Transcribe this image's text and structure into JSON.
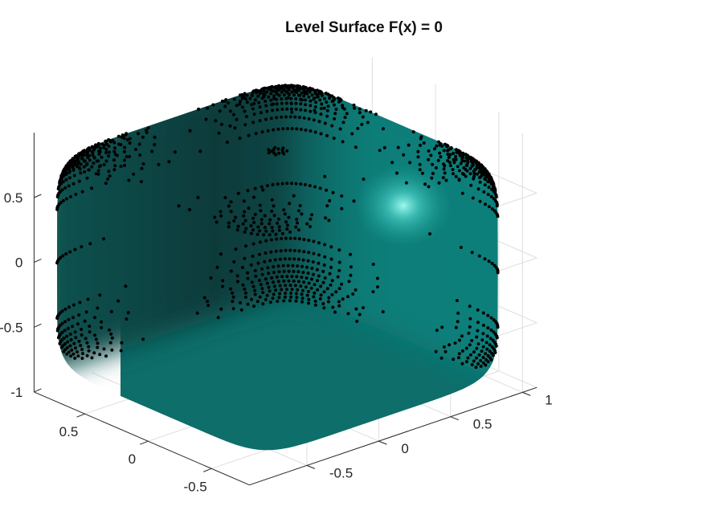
{
  "chart_data": {
    "type": "scatter",
    "subtype": "3d-isosurface-with-points",
    "title": "Level Surface F(x) = 0",
    "xlabel": "",
    "ylabel": "",
    "zlabel": "",
    "x_ticks": [
      "0.5",
      "0",
      "-0.5"
    ],
    "y_ticks": [
      "-0.5",
      "0",
      "0.5",
      "1"
    ],
    "z_ticks": [
      "0.5",
      "0",
      "-0.5",
      "-1"
    ],
    "xlim": [
      -0.8,
      0.9
    ],
    "ylim": [
      -0.9,
      1.1
    ],
    "zlim": [
      -1,
      1
    ],
    "grid": true,
    "surface_color": "#0f8f8a",
    "point_color": "#000000",
    "points": "quasi-uniform sample of the level surface of a rounded cube |x|^p+|y|^p+|z|^p = 1, half-size about 0.9, with one point ring per latitude"
  }
}
